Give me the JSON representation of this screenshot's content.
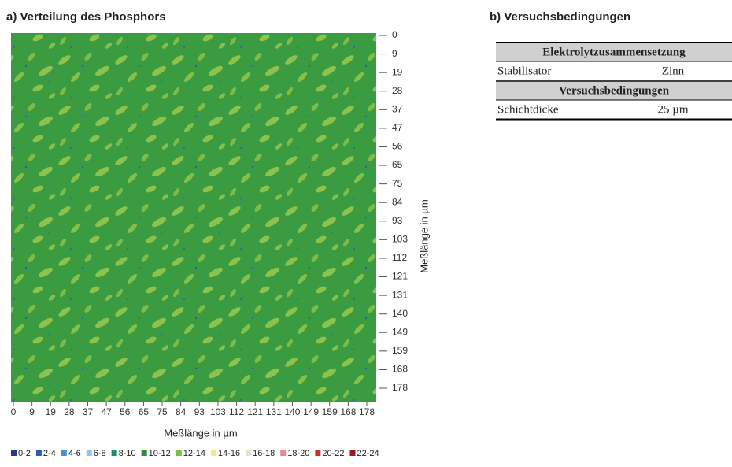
{
  "panel_a": {
    "title": "a) Verteilung des Phosphors",
    "y_axis_label": "Meßlänge in µm",
    "x_axis_label": "Meßlänge in µm",
    "y_ticks": [
      0,
      9,
      19,
      28,
      37,
      47,
      56,
      65,
      75,
      84,
      93,
      103,
      112,
      121,
      131,
      140,
      149,
      159,
      168,
      178
    ],
    "x_ticks": [
      0,
      9,
      19,
      28,
      37,
      47,
      56,
      65,
      75,
      84,
      93,
      103,
      112,
      121,
      131,
      140,
      149,
      159,
      168,
      178
    ],
    "legend": [
      {
        "label": "0-2",
        "color": "#1f3b8a"
      },
      {
        "label": "2-4",
        "color": "#2a5fb5"
      },
      {
        "label": "4-6",
        "color": "#4a90d9"
      },
      {
        "label": "6-8",
        "color": "#8cc6e8"
      },
      {
        "label": "8-10",
        "color": "#1d8a72"
      },
      {
        "label": "10-12",
        "color": "#2e8b3a"
      },
      {
        "label": "12-14",
        "color": "#7ac142"
      },
      {
        "label": "14-16",
        "color": "#f2ea86"
      },
      {
        "label": "16-18",
        "color": "#e6e3cc"
      },
      {
        "label": "18-20",
        "color": "#e88a8a"
      },
      {
        "label": "20-22",
        "color": "#c8302a"
      },
      {
        "label": "22-24",
        "color": "#a01820"
      }
    ]
  },
  "panel_b": {
    "title": "b) Versuchsbedingungen",
    "table": {
      "sections": [
        {
          "header": "Elektrolytzusammensetzung",
          "rows": [
            [
              "Stabilisator",
              "Zinn"
            ]
          ]
        },
        {
          "header": "Versuchsbedingungen",
          "rows": [
            [
              "Schichtdicke",
              "25 µm"
            ]
          ]
        }
      ]
    }
  }
}
